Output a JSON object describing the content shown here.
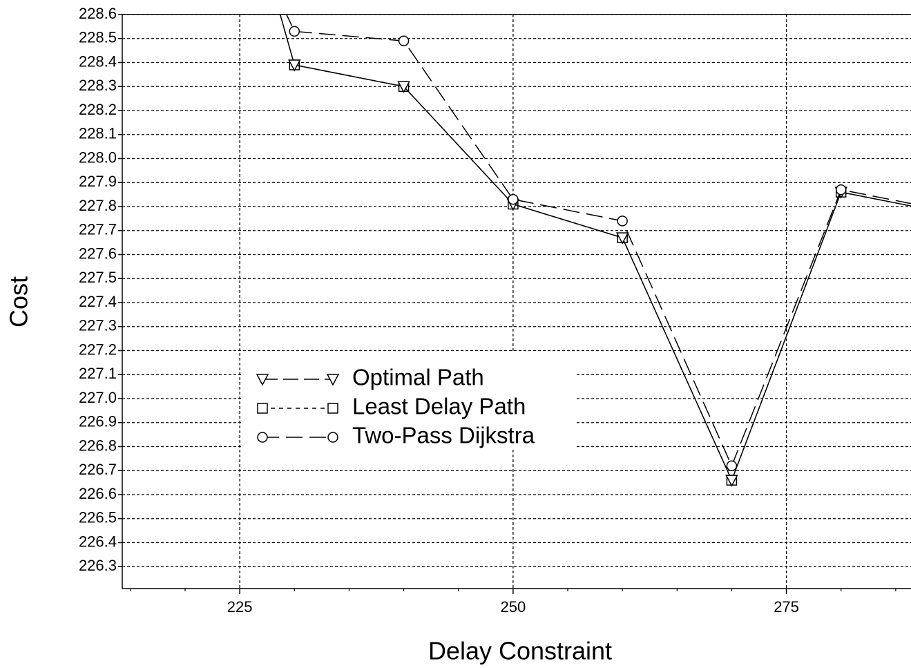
{
  "chart_data": {
    "type": "line",
    "xlabel": "Delay Constraint",
    "ylabel": "Cost",
    "x": [
      220,
      230,
      240,
      250,
      260,
      270,
      280,
      290
    ],
    "series": [
      {
        "name": "Optimal Path",
        "color": "#000000",
        "values": [
          230.0,
          228.39,
          228.3,
          227.81,
          227.67,
          226.66,
          227.86,
          227.77
        ]
      },
      {
        "name": "Least Delay Path",
        "color": "#000000",
        "values": [
          230.0,
          228.39,
          228.3,
          227.81,
          227.67,
          226.66,
          227.86,
          227.77
        ]
      },
      {
        "name": "Two-Pass Dijkstra",
        "color": "#000000",
        "values": [
          229.5,
          228.53,
          228.49,
          227.83,
          227.74,
          226.72,
          227.87,
          227.78
        ]
      }
    ],
    "xlim": [
      214.25,
      286.4
    ],
    "xticks": [
      225,
      250,
      275
    ],
    "xminorticks": [
      215,
      220,
      230,
      235,
      240,
      245,
      255,
      260,
      265,
      270,
      280,
      285
    ],
    "ylim": [
      226.2,
      228.6
    ],
    "yticks": [
      226.3,
      226.4,
      226.5,
      226.6,
      226.7,
      226.8,
      226.9,
      {
        "value": 227.0,
        "label": "227.0"
      },
      227.1,
      227.2,
      227.3,
      227.4,
      227.5,
      227.6,
      227.7,
      227.8,
      227.9,
      {
        "value": 228.0,
        "label": "228.0"
      },
      228.1,
      228.2,
      228.3,
      228.4,
      228.5,
      228.6
    ],
    "grid": true
  }
}
